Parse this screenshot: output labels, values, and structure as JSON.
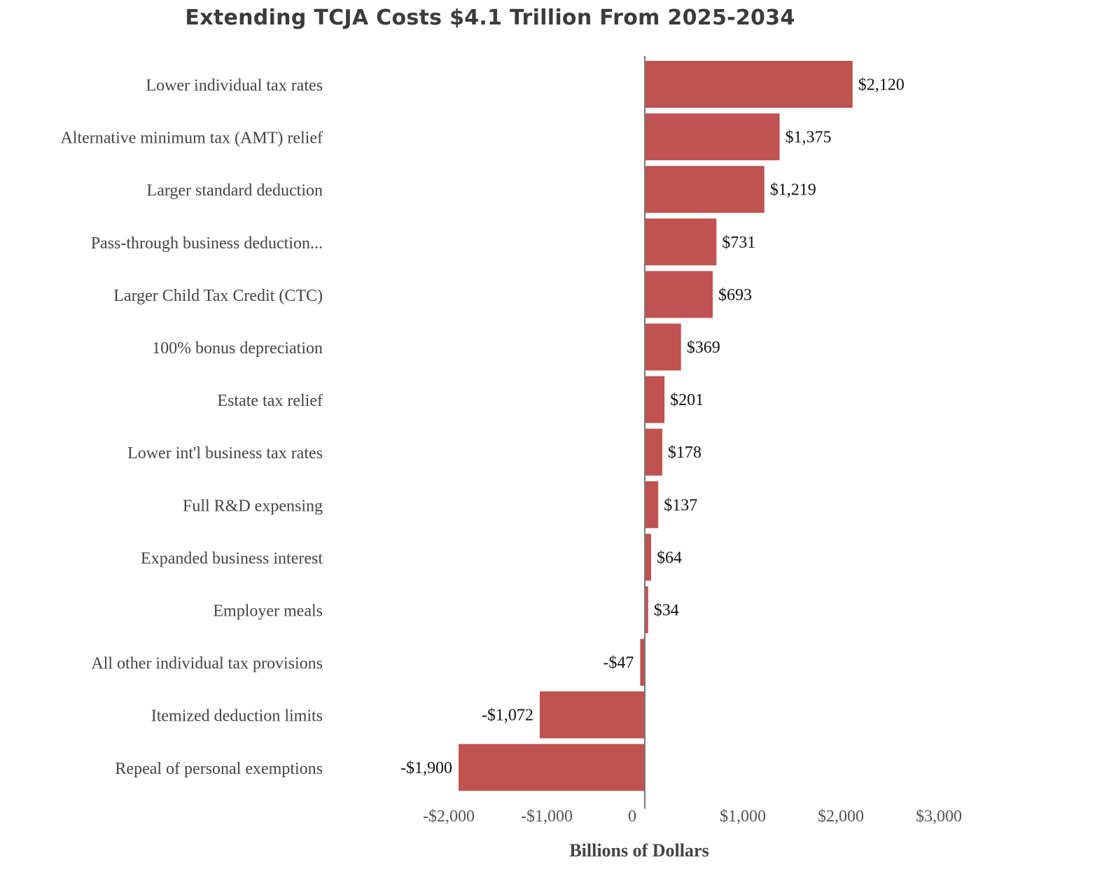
{
  "chart_data": {
    "type": "bar",
    "orientation": "horizontal",
    "title": "Extending TCJA Costs $4.1 Trillion From 2025-2034",
    "xlabel": "Billions of Dollars",
    "ylabel": "",
    "categories": [
      "Lower individual tax rates",
      "Alternative minimum tax (AMT) relief",
      "Larger standard deduction",
      "Pass-through business deduction...",
      "Larger Child Tax Credit (CTC)",
      "100% bonus depreciation",
      "Estate tax relief",
      "Lower int'l business tax rates",
      "Full R&D expensing",
      "Expanded business interest",
      "Employer meals",
      "All other individual tax provisions",
      "Itemized deduction limits",
      "Repeal of personal exemptions"
    ],
    "values": [
      2120,
      1375,
      1219,
      731,
      693,
      369,
      201,
      178,
      137,
      64,
      34,
      -47,
      -1072,
      -1900
    ],
    "value_labels": [
      "$2,120",
      "$1,375",
      "$1,219",
      "$731",
      "$693",
      "$369",
      "$201",
      "$178",
      "$137",
      "$64",
      "$34",
      "-$47",
      "-$1,072",
      "-$1,900"
    ],
    "xticks": [
      {
        "value": -2000,
        "label": "-$2,000"
      },
      {
        "value": -1000,
        "label": "-$1,000"
      },
      {
        "value": 0,
        "label": "0"
      },
      {
        "value": 1000,
        "label": "$1,000"
      },
      {
        "value": 2000,
        "label": "$2,000"
      },
      {
        "value": 3000,
        "label": "$3,000"
      }
    ],
    "xlim": [
      -2000,
      3000
    ],
    "grid": false,
    "legend": "none",
    "bar_color": "#c05250",
    "axis_color": "#777777"
  }
}
